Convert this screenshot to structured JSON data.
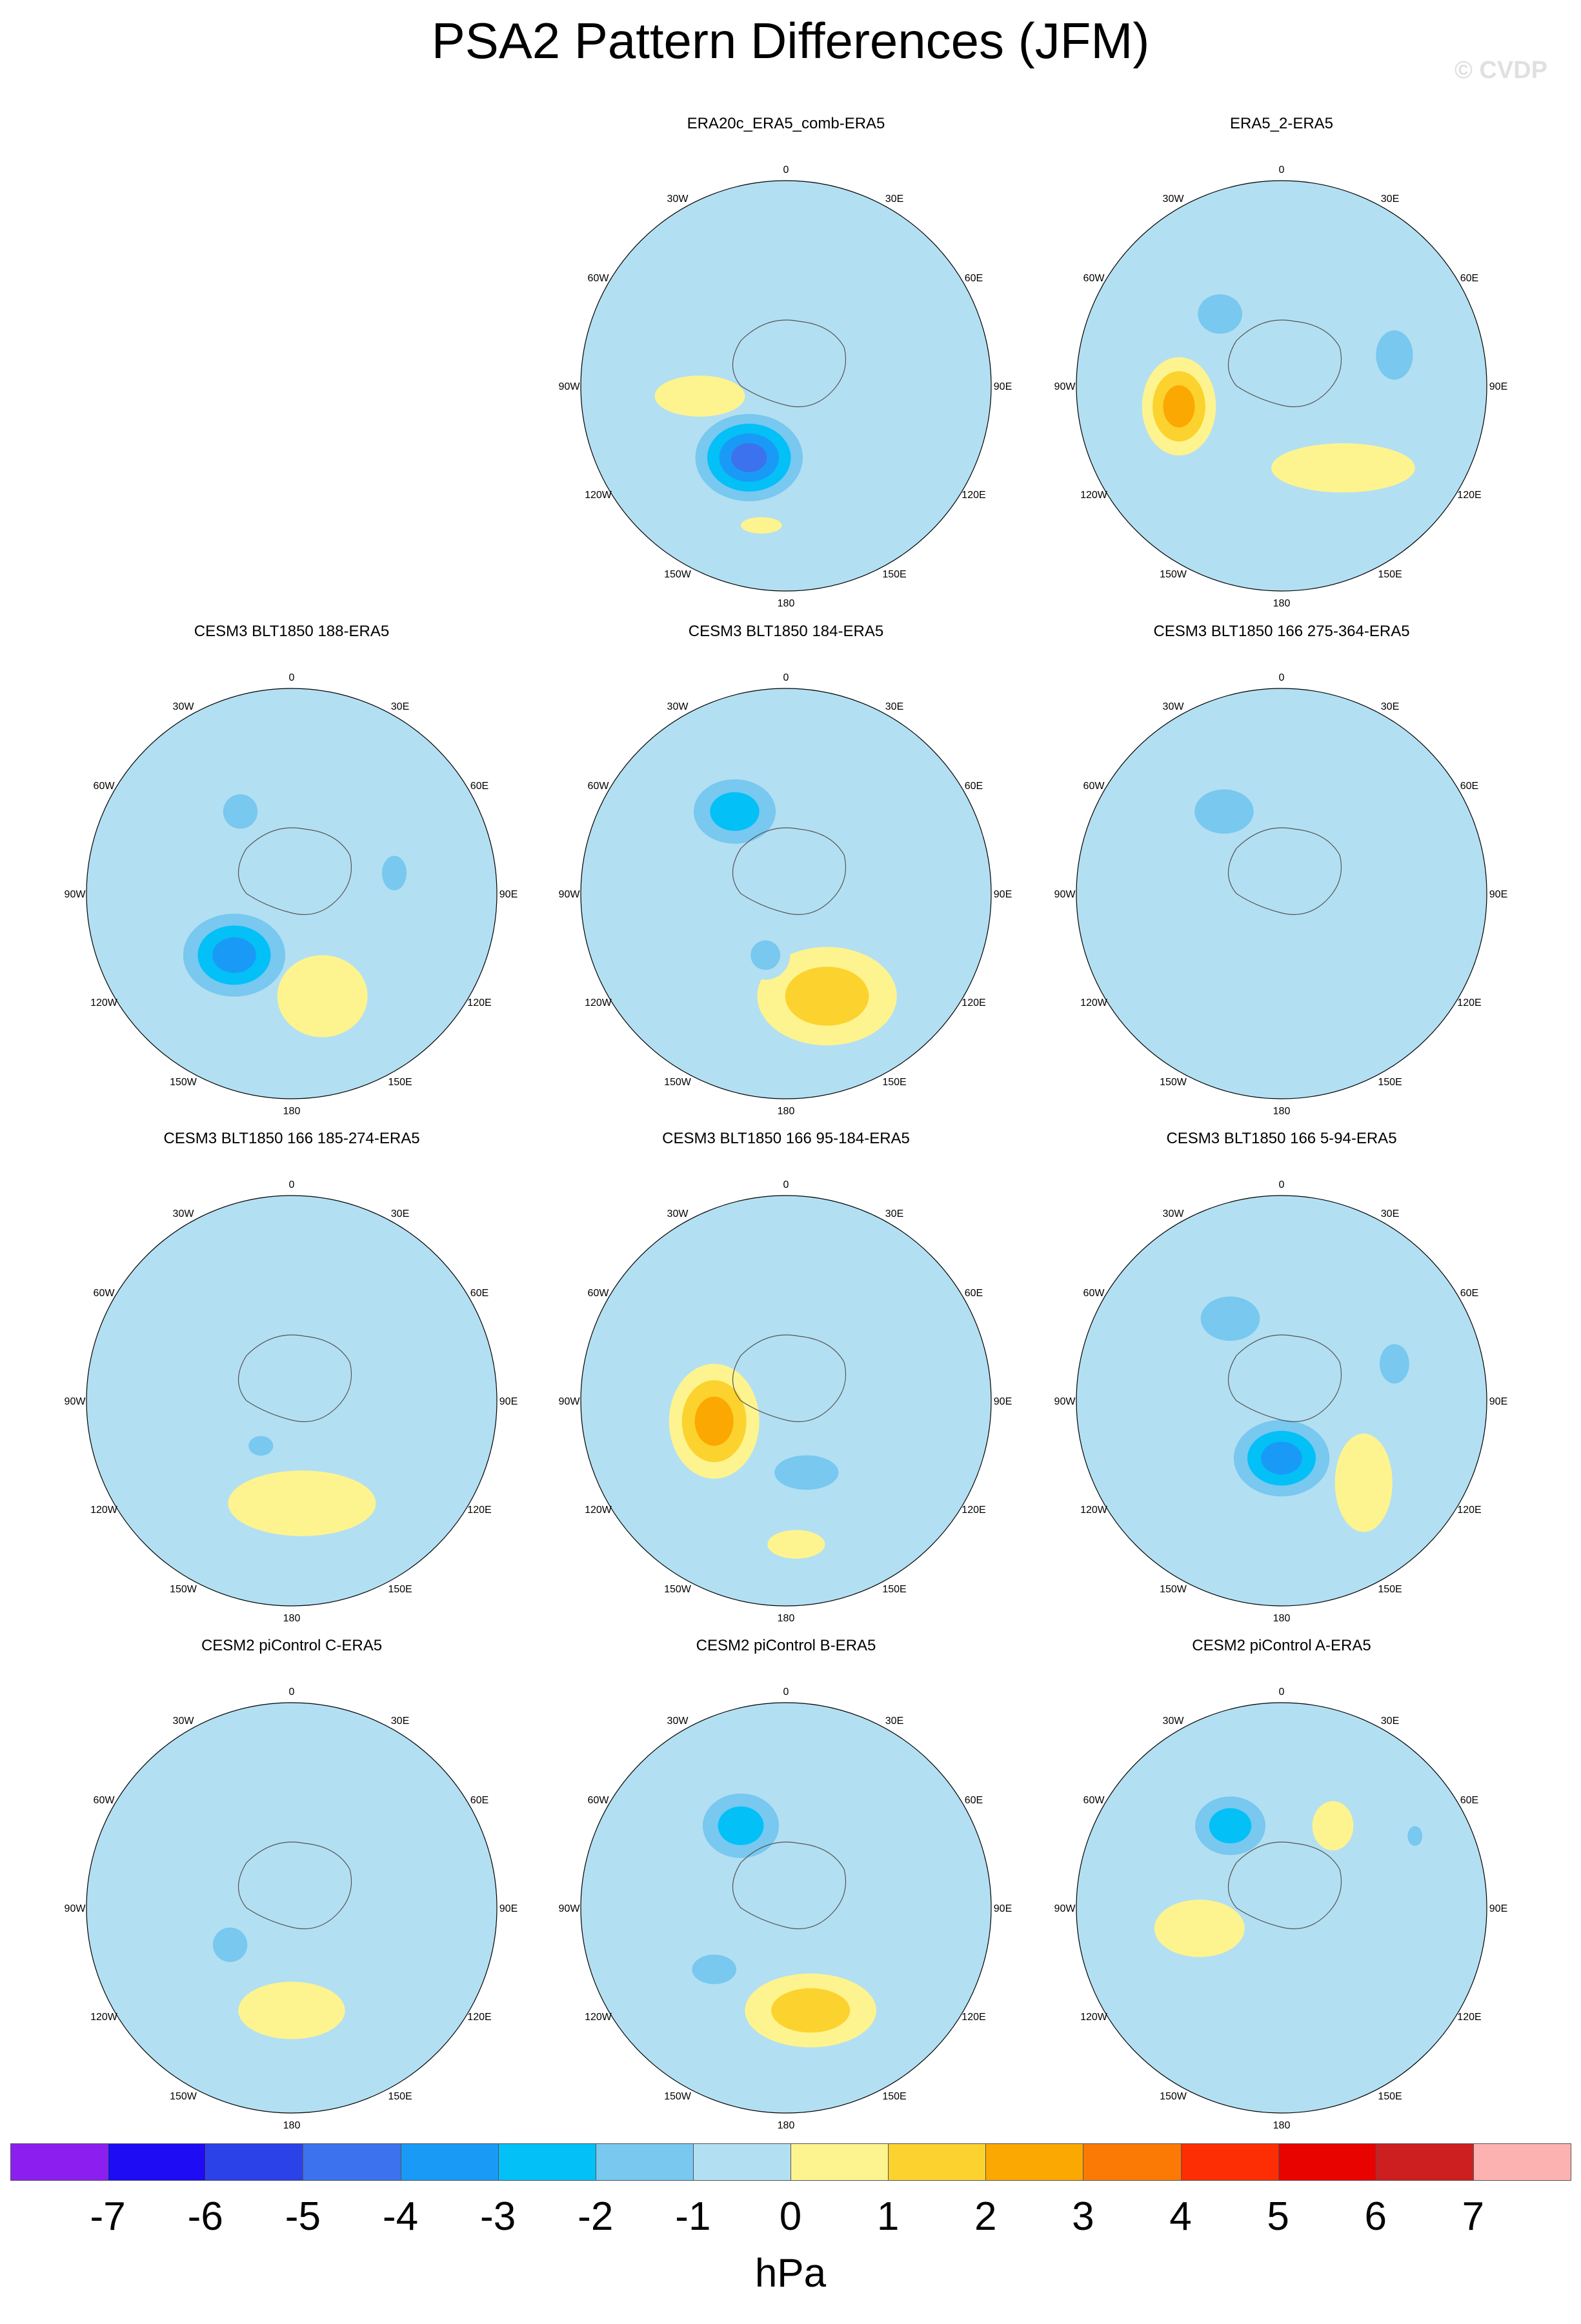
{
  "title": "PSA2 Pattern Differences (JFM)",
  "copyright": "© CVDP",
  "colors": {
    "ocean_base": "#b3dff2",
    "land_line": "#555555"
  },
  "chart_data": {
    "type": "heatmap",
    "projection": "south-polar-stereographic",
    "units": "hPa",
    "lon_labels": [
      "0",
      "30E",
      "60E",
      "90E",
      "120E",
      "150E",
      "180",
      "150W",
      "120W",
      "90W",
      "60W",
      "30W"
    ],
    "colorbar": {
      "levels": [
        "-7",
        "-6",
        "-5",
        "-4",
        "-3",
        "-2",
        "-1",
        "0",
        "1",
        "2",
        "3",
        "4",
        "5",
        "6",
        "7"
      ],
      "colors": [
        "#8c1ff0",
        "#1e0cf5",
        "#2a42e8",
        "#3c72ee",
        "#1a9af7",
        "#03c0f7",
        "#78c8f0",
        "#b3dff2",
        "#fdf48f",
        "#fcd22e",
        "#fca802",
        "#fb7a06",
        "#fd2e03",
        "#e80301",
        "#cd1f1f",
        "#fcb2b0"
      ]
    },
    "panels": [
      {
        "title": "ERA20c_ERA5_comb-ERA5",
        "row": 0,
        "col": 1,
        "blobs": [
          {
            "x": -0.18,
            "y": 0.35,
            "rx": 0.32,
            "ry": 0.26,
            "level": -5
          },
          {
            "x": -0.42,
            "y": 0.05,
            "rx": 0.22,
            "ry": 0.1,
            "level": 1
          },
          {
            "x": -0.12,
            "y": 0.68,
            "rx": 0.1,
            "ry": 0.04,
            "level": 1
          }
        ]
      },
      {
        "title": "ERA5_2-ERA5",
        "row": 0,
        "col": 2,
        "blobs": [
          {
            "x": -0.5,
            "y": 0.1,
            "rx": 0.18,
            "ry": 0.24,
            "level": 3
          },
          {
            "x": 0.3,
            "y": 0.4,
            "rx": 0.35,
            "ry": 0.12,
            "level": 1
          },
          {
            "x": -0.3,
            "y": -0.35,
            "rx": 0.18,
            "ry": 0.16,
            "level": -2
          },
          {
            "x": 0.55,
            "y": -0.15,
            "rx": 0.15,
            "ry": 0.2,
            "level": -2
          }
        ]
      },
      {
        "title": "CESM3 BLT1850 188-ERA5",
        "row": 1,
        "col": 0,
        "blobs": [
          {
            "x": -0.28,
            "y": 0.3,
            "rx": 0.32,
            "ry": 0.26,
            "level": -4
          },
          {
            "x": 0.15,
            "y": 0.5,
            "rx": 0.22,
            "ry": 0.2,
            "level": 1
          },
          {
            "x": -0.25,
            "y": -0.4,
            "rx": 0.14,
            "ry": 0.14,
            "level": -2
          },
          {
            "x": 0.5,
            "y": -0.1,
            "rx": 0.1,
            "ry": 0.14,
            "level": -2
          }
        ]
      },
      {
        "title": "CESM3 BLT1850 184-ERA5",
        "row": 1,
        "col": 1,
        "blobs": [
          {
            "x": -0.25,
            "y": -0.4,
            "rx": 0.28,
            "ry": 0.22,
            "level": -3
          },
          {
            "x": 0.2,
            "y": 0.5,
            "rx": 0.34,
            "ry": 0.24,
            "level": 2
          },
          {
            "x": -0.1,
            "y": 0.3,
            "rx": 0.12,
            "ry": 0.12,
            "level": -2
          }
        ]
      },
      {
        "title": "CESM3 BLT1850 166 275-364-ERA5",
        "row": 1,
        "col": 2,
        "blobs": [
          {
            "x": -0.28,
            "y": -0.4,
            "rx": 0.24,
            "ry": 0.18,
            "level": -2
          }
        ]
      },
      {
        "title": "CESM3 BLT1850 166 185-274-ERA5",
        "row": 2,
        "col": 0,
        "blobs": [
          {
            "x": 0.05,
            "y": 0.5,
            "rx": 0.36,
            "ry": 0.16,
            "level": 1
          },
          {
            "x": -0.15,
            "y": 0.22,
            "rx": 0.1,
            "ry": 0.08,
            "level": -2
          }
        ]
      },
      {
        "title": "CESM3 BLT1850 166 95-184-ERA5",
        "row": 2,
        "col": 1,
        "blobs": [
          {
            "x": -0.35,
            "y": 0.1,
            "rx": 0.22,
            "ry": 0.28,
            "level": 3
          },
          {
            "x": 0.1,
            "y": 0.35,
            "rx": 0.26,
            "ry": 0.14,
            "level": -2
          },
          {
            "x": 0.05,
            "y": 0.7,
            "rx": 0.14,
            "ry": 0.07,
            "level": 1
          }
        ]
      },
      {
        "title": "CESM3 BLT1850 166 5-94-ERA5",
        "row": 2,
        "col": 2,
        "blobs": [
          {
            "x": 0.0,
            "y": 0.28,
            "rx": 0.3,
            "ry": 0.24,
            "level": -4
          },
          {
            "x": 0.4,
            "y": 0.4,
            "rx": 0.14,
            "ry": 0.24,
            "level": 1
          },
          {
            "x": -0.25,
            "y": -0.4,
            "rx": 0.24,
            "ry": 0.18,
            "level": -2
          },
          {
            "x": 0.55,
            "y": -0.18,
            "rx": 0.12,
            "ry": 0.16,
            "level": -2
          }
        ]
      },
      {
        "title": "CESM2 piControl C-ERA5",
        "row": 3,
        "col": 0,
        "blobs": [
          {
            "x": 0.0,
            "y": 0.5,
            "rx": 0.26,
            "ry": 0.14,
            "level": 1
          },
          {
            "x": -0.3,
            "y": 0.18,
            "rx": 0.14,
            "ry": 0.14,
            "level": -2
          }
        ]
      },
      {
        "title": "CESM2 piControl B-ERA5",
        "row": 3,
        "col": 1,
        "blobs": [
          {
            "x": -0.22,
            "y": -0.4,
            "rx": 0.26,
            "ry": 0.22,
            "level": -3
          },
          {
            "x": 0.12,
            "y": 0.5,
            "rx": 0.32,
            "ry": 0.18,
            "level": 2
          },
          {
            "x": -0.35,
            "y": 0.3,
            "rx": 0.18,
            "ry": 0.12,
            "level": -2
          }
        ]
      },
      {
        "title": "CESM2 piControl A-ERA5",
        "row": 3,
        "col": 2,
        "blobs": [
          {
            "x": -0.25,
            "y": -0.4,
            "rx": 0.24,
            "ry": 0.2,
            "level": -3
          },
          {
            "x": -0.4,
            "y": 0.1,
            "rx": 0.22,
            "ry": 0.14,
            "level": 1
          },
          {
            "x": 0.25,
            "y": -0.4,
            "rx": 0.1,
            "ry": 0.12,
            "level": 1
          },
          {
            "x": 0.65,
            "y": -0.35,
            "rx": 0.06,
            "ry": 0.08,
            "level": -2
          }
        ]
      }
    ]
  }
}
